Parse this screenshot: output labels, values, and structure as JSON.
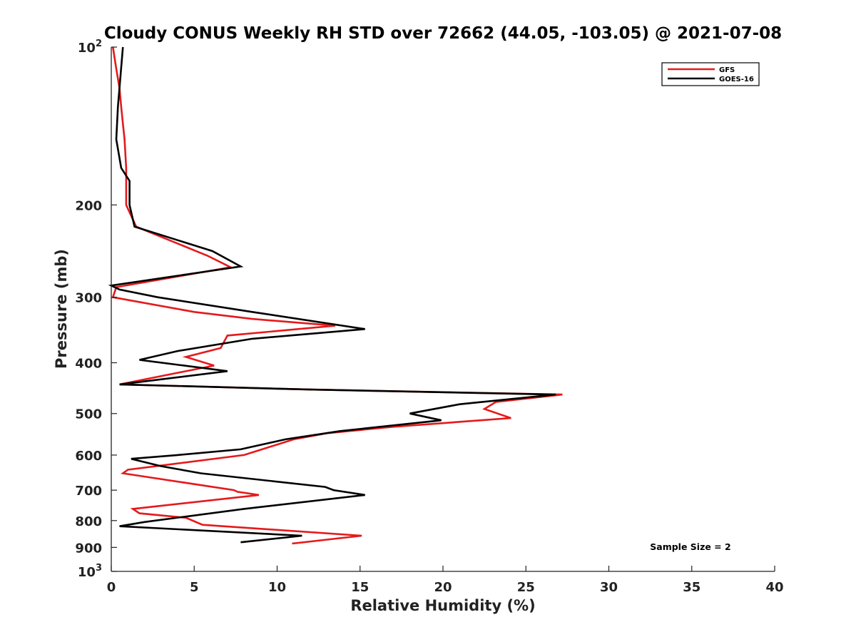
{
  "chart_data": {
    "type": "line",
    "title": "Cloudy CONUS Weekly RH STD over 72662 (44.05, -103.05) @ 2021-07-08",
    "xlabel": "Relative Humidity (%)",
    "ylabel": "Pressure (mb)",
    "xlim": [
      0,
      40
    ],
    "ylim": [
      100,
      1000
    ],
    "y_scale": "log",
    "y_reversed": true,
    "x_ticks": [
      "0",
      "5",
      "10",
      "15",
      "20",
      "25",
      "30",
      "35",
      "40"
    ],
    "x_tick_values": [
      0,
      5,
      10,
      15,
      20,
      25,
      30,
      35,
      40
    ],
    "y_ticks": [
      {
        "value": 100,
        "base": "10",
        "exp": "2"
      },
      {
        "value": 200,
        "label": "200"
      },
      {
        "value": 300,
        "label": "300"
      },
      {
        "value": 400,
        "label": "400"
      },
      {
        "value": 500,
        "label": "500"
      },
      {
        "value": 600,
        "label": "600"
      },
      {
        "value": 700,
        "label": "700"
      },
      {
        "value": 800,
        "label": "800"
      },
      {
        "value": 900,
        "label": "900"
      },
      {
        "value": 1000,
        "base": "10",
        "exp": "3"
      }
    ],
    "grid": false,
    "legend_position": "top-right",
    "annotation": "Sample Size = 2",
    "series": [
      {
        "name": "GFS",
        "color": "#e41a1c",
        "points": [
          [
            0.1,
            100
          ],
          [
            0.3,
            110
          ],
          [
            0.5,
            120
          ],
          [
            0.6,
            130
          ],
          [
            0.7,
            140
          ],
          [
            0.8,
            150
          ],
          [
            0.9,
            170
          ],
          [
            0.9,
            200
          ],
          [
            1.5,
            220
          ],
          [
            4.0,
            237
          ],
          [
            5.8,
            250
          ],
          [
            7.2,
            263
          ],
          [
            0.3,
            287
          ],
          [
            0.1,
            300
          ],
          [
            5.0,
            320
          ],
          [
            8.5,
            330
          ],
          [
            13.5,
            340
          ],
          [
            7.0,
            355
          ],
          [
            6.6,
            375
          ],
          [
            4.5,
            390
          ],
          [
            6.2,
            405
          ],
          [
            0.5,
            440
          ],
          [
            12.0,
            450
          ],
          [
            27.2,
            460
          ],
          [
            23.2,
            475
          ],
          [
            22.5,
            490
          ],
          [
            24.1,
            510
          ],
          [
            17.0,
            530
          ],
          [
            13.0,
            545
          ],
          [
            11.0,
            560
          ],
          [
            8.0,
            600
          ],
          [
            1.0,
            640
          ],
          [
            0.7,
            650
          ],
          [
            7.4,
            700
          ],
          [
            7.6,
            705
          ],
          [
            8.9,
            715
          ],
          [
            1.3,
            760
          ],
          [
            1.7,
            775
          ],
          [
            4.5,
            790
          ],
          [
            5.5,
            815
          ],
          [
            15.1,
            855
          ],
          [
            10.9,
            885
          ]
        ]
      },
      {
        "name": "GOES-16",
        "color": "#000000",
        "points": [
          [
            0.7,
            100
          ],
          [
            0.4,
            130
          ],
          [
            0.3,
            150
          ],
          [
            0.6,
            170
          ],
          [
            1.1,
            180
          ],
          [
            1.1,
            200
          ],
          [
            1.4,
            220
          ],
          [
            6.1,
            245
          ],
          [
            7.8,
            262
          ],
          [
            0.0,
            285
          ],
          [
            0.5,
            290
          ],
          [
            2.8,
            300
          ],
          [
            8.5,
            320
          ],
          [
            15.3,
            345
          ],
          [
            8.5,
            360
          ],
          [
            4.0,
            380
          ],
          [
            1.7,
            395
          ],
          [
            7.0,
            415
          ],
          [
            0.5,
            440
          ],
          [
            12.0,
            450
          ],
          [
            26.8,
            460
          ],
          [
            21.0,
            480
          ],
          [
            18.0,
            500
          ],
          [
            19.9,
            515
          ],
          [
            13.8,
            540
          ],
          [
            10.5,
            560
          ],
          [
            7.8,
            585
          ],
          [
            4.0,
            600
          ],
          [
            1.2,
            610
          ],
          [
            3.0,
            630
          ],
          [
            5.4,
            650
          ],
          [
            12.9,
            690
          ],
          [
            13.4,
            700
          ],
          [
            15.3,
            715
          ],
          [
            8.0,
            760
          ],
          [
            2.0,
            805
          ],
          [
            0.5,
            820
          ],
          [
            11.5,
            855
          ],
          [
            7.8,
            880
          ]
        ]
      }
    ]
  }
}
